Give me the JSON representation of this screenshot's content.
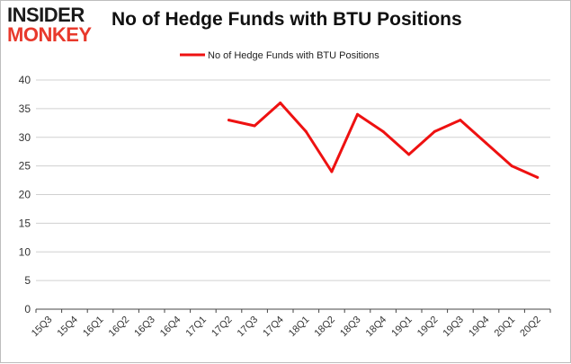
{
  "logo": {
    "line1": "INSIDER",
    "line2": "MONKEY"
  },
  "colors": {
    "series": "#ee1111",
    "grid": "#d0d0d0",
    "axis": "#444444",
    "logo_dark": "#1a1a1a",
    "logo_red": "#e8392c"
  },
  "chart_data": {
    "type": "line",
    "title": "No of Hedge Funds with BTU Positions",
    "xlabel": "",
    "ylabel": "",
    "categories": [
      "15Q3",
      "15Q4",
      "16Q1",
      "16Q2",
      "16Q3",
      "16Q4",
      "17Q1",
      "17Q2",
      "17Q3",
      "17Q4",
      "18Q1",
      "18Q2",
      "18Q3",
      "18Q4",
      "19Q1",
      "19Q2",
      "19Q3",
      "19Q4",
      "20Q1",
      "20Q2"
    ],
    "series": [
      {
        "name": "No of Hedge Funds with BTU Positions",
        "values": [
          null,
          null,
          null,
          null,
          null,
          null,
          null,
          33,
          32,
          36,
          31,
          24,
          34,
          31,
          27,
          31,
          33,
          29,
          25,
          23
        ]
      }
    ],
    "ylim": [
      0,
      40
    ],
    "yticks": [
      0,
      5,
      10,
      15,
      20,
      25,
      30,
      35,
      40
    ],
    "grid": true,
    "legend": "top-center"
  }
}
